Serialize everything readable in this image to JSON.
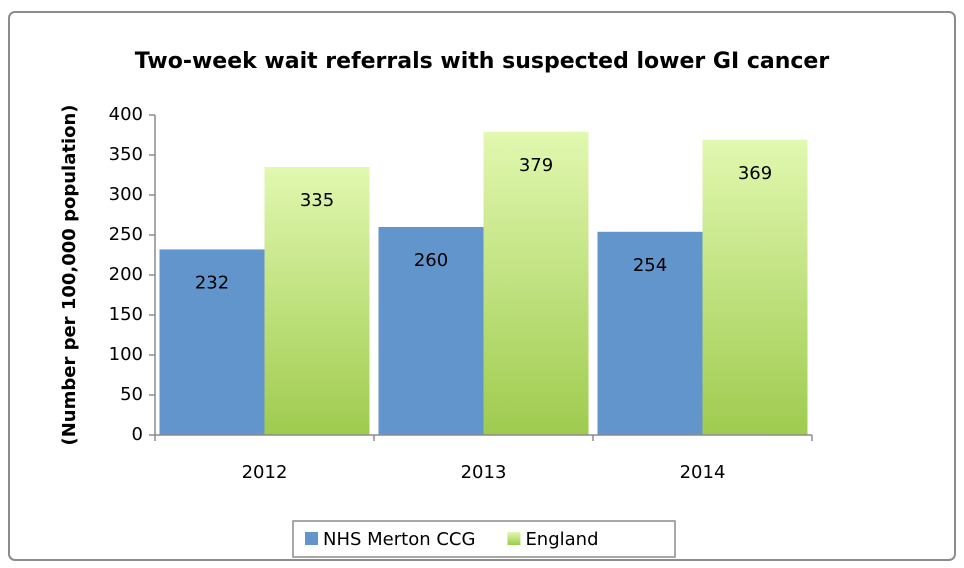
{
  "chart_data": {
    "type": "bar",
    "title": "Two-week wait referrals with suspected lower GI cancer",
    "y_label": "(Number per 100,000 population)",
    "categories": [
      "2012",
      "2013",
      "2014"
    ],
    "series": [
      {
        "name": "NHS Merton CCG",
        "color": "#6195cb",
        "values": [
          232,
          260,
          254
        ]
      },
      {
        "name": "England",
        "color": "#b9e070",
        "values": [
          335,
          379,
          369
        ]
      }
    ],
    "ylim": [
      0,
      400
    ],
    "yticks": [
      0,
      50,
      100,
      150,
      200,
      250,
      300,
      350,
      400
    ],
    "legend": "bottom"
  }
}
